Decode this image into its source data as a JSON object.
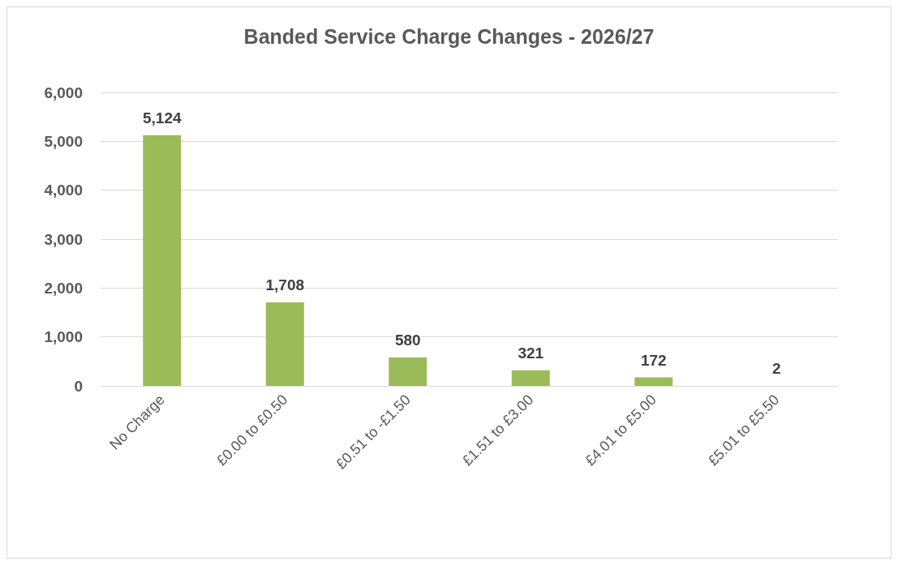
{
  "chart_data": {
    "type": "bar",
    "title": "Banded Service Charge Changes - 2026/27",
    "categories": [
      "No Charge",
      "£0.00 to £0.50",
      "£0.51 to -£1.50",
      "£1.51 to £3.00",
      "£4.01 to £5.00",
      "£5.01 to £5.50"
    ],
    "values": [
      5124,
      1708,
      580,
      321,
      172,
      2
    ],
    "value_labels": [
      "5,124",
      "1,708",
      "580",
      "321",
      "172",
      "2"
    ],
    "color": "#9bbb59",
    "ylim": [
      0,
      6000
    ],
    "yticks": [
      {
        "value": 0,
        "label": "0"
      },
      {
        "value": 1000,
        "label": "1,000"
      },
      {
        "value": 2000,
        "label": "2,000"
      },
      {
        "value": 3000,
        "label": "3,000"
      },
      {
        "value": 4000,
        "label": "4,000"
      },
      {
        "value": 5000,
        "label": "5,000"
      },
      {
        "value": 6000,
        "label": "6,000"
      }
    ],
    "grid": "y"
  }
}
